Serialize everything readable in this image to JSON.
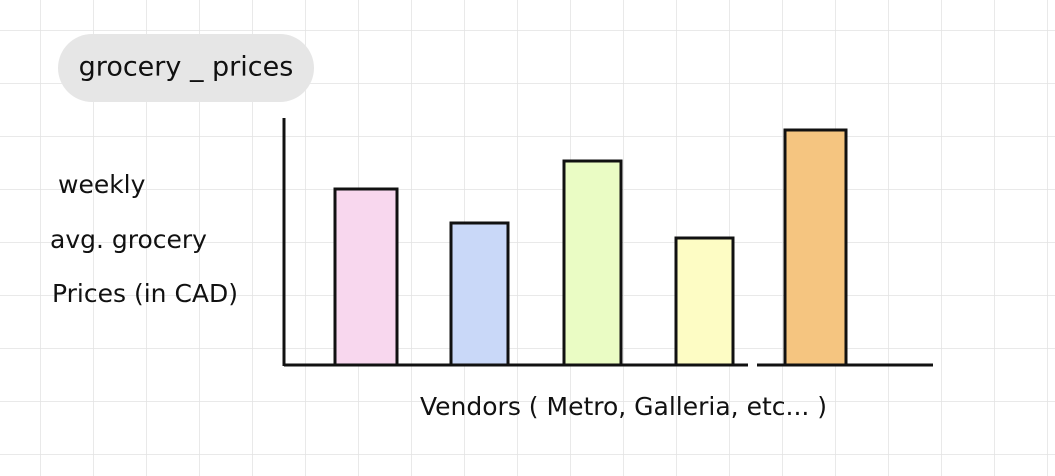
{
  "title": "grocery _ prices",
  "y_axis_label": [
    "weekly",
    "avg. grocery",
    "Prices (in CAD)"
  ],
  "x_axis_label": "Vendors ( Metro, Galleria, etc... )"
}
